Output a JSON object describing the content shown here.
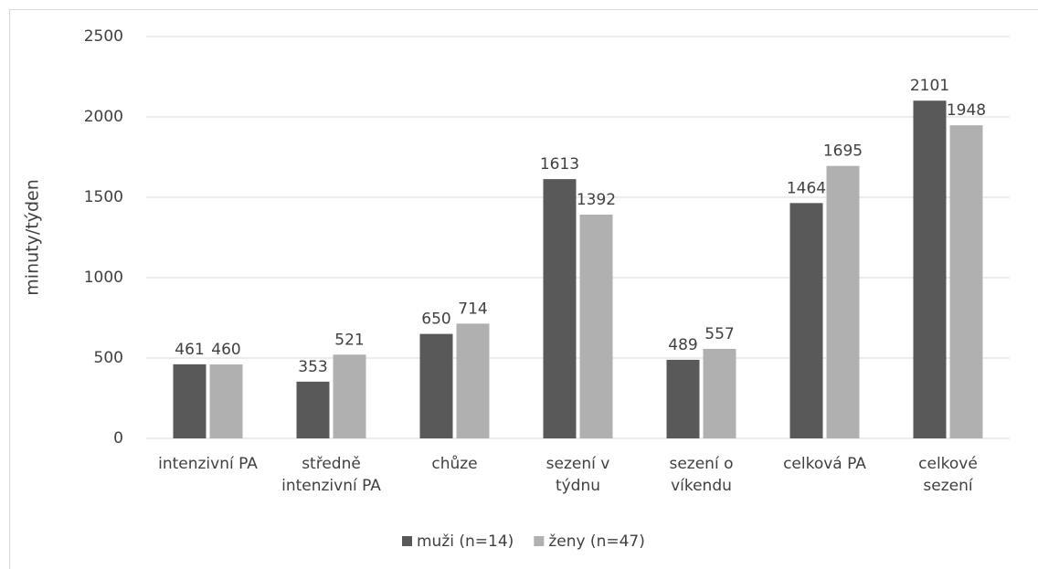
{
  "chart_data": {
    "type": "bar",
    "y_label": "minuty/týden",
    "categories": [
      "intenzivní PA",
      "středně\nintenzivní PA",
      "chůze",
      "sezení v\ntýdnu",
      "sezení o\nvíkendu",
      "celková PA",
      "celkové\nsezení"
    ],
    "series": [
      {
        "name": "muži (n=14)",
        "color": "#595959",
        "values": [
          461,
          353,
          650,
          1613,
          489,
          1464,
          2101
        ]
      },
      {
        "name": "ženy (n=47)",
        "color": "#b0b0b0",
        "values": [
          460,
          521,
          714,
          1392,
          557,
          1695,
          1948
        ]
      }
    ],
    "ylim": [
      0,
      2500
    ],
    "yticks": [
      0,
      500,
      1000,
      1500,
      2000,
      2500
    ],
    "grid": true
  }
}
